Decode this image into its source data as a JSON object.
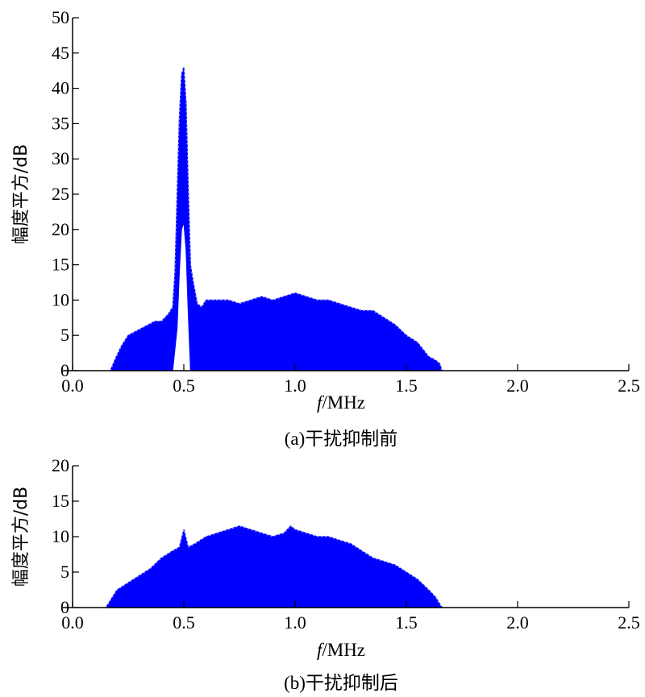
{
  "chart_data": [
    {
      "type": "area",
      "caption": "(a)干扰抑制前",
      "xlabel_italic": "f",
      "xlabel_rest": "/MHz",
      "ylabel": "幅度平方/dB",
      "xlim": [
        0,
        2.5
      ],
      "ylim": [
        0,
        50
      ],
      "xticks": [
        "0.0",
        "0.5",
        "1.0",
        "1.5",
        "2.0",
        "2.5"
      ],
      "yticks": [
        "0",
        "5",
        "10",
        "15",
        "20",
        "25",
        "30",
        "35",
        "40",
        "45",
        "50"
      ],
      "color": "#0000ff",
      "series": [
        {
          "x": [
            0.17,
            0.19,
            0.22,
            0.25,
            0.28,
            0.31,
            0.34,
            0.37,
            0.4,
            0.43,
            0.45,
            0.46,
            0.47,
            0.48,
            0.49,
            0.5,
            0.51,
            0.52,
            0.53,
            0.54,
            0.56,
            0.58,
            0.6,
            0.65,
            0.7,
            0.75,
            0.8,
            0.85,
            0.9,
            0.95,
            1.0,
            1.05,
            1.1,
            1.15,
            1.2,
            1.25,
            1.3,
            1.35,
            1.4,
            1.45,
            1.5,
            1.55,
            1.6,
            1.63,
            1.65,
            1.66
          ],
          "y": [
            0.0,
            1.5,
            3.5,
            5.0,
            5.5,
            6.0,
            6.5,
            7.0,
            7.0,
            8.0,
            9.0,
            14.0,
            25.0,
            36.0,
            42.0,
            43.0,
            38.0,
            26.0,
            15.0,
            13.0,
            9.5,
            9.0,
            10.0,
            10.0,
            10.0,
            9.5,
            10.0,
            10.5,
            10.0,
            10.5,
            11.0,
            10.5,
            10.0,
            10.0,
            9.5,
            9.0,
            8.5,
            8.5,
            7.5,
            6.5,
            5.0,
            4.0,
            2.0,
            1.5,
            1.0,
            0.0
          ]
        }
      ],
      "inner_curve": {
        "x": [
          0.45,
          0.47,
          0.48,
          0.49,
          0.5,
          0.51,
          0.52,
          0.53
        ],
        "y": [
          0.0,
          6.0,
          14.0,
          20.0,
          21.0,
          17.0,
          8.0,
          0.0
        ]
      }
    },
    {
      "type": "area",
      "caption": "(b)干扰抑制后",
      "xlabel_italic": "f",
      "xlabel_rest": "/MHz",
      "ylabel": "幅度平方/dB",
      "xlim": [
        0,
        2.5
      ],
      "ylim": [
        0,
        20
      ],
      "xticks": [
        "0.0",
        "0.5",
        "1.0",
        "1.5",
        "2.0",
        "2.5"
      ],
      "yticks": [
        "0",
        "5",
        "10",
        "15",
        "20"
      ],
      "color": "#0000ff",
      "series": [
        {
          "x": [
            0.15,
            0.17,
            0.2,
            0.25,
            0.3,
            0.35,
            0.4,
            0.45,
            0.48,
            0.5,
            0.52,
            0.55,
            0.6,
            0.65,
            0.7,
            0.75,
            0.8,
            0.85,
            0.9,
            0.95,
            0.98,
            1.0,
            1.05,
            1.1,
            1.15,
            1.2,
            1.25,
            1.3,
            1.35,
            1.4,
            1.45,
            1.5,
            1.55,
            1.6,
            1.63,
            1.65,
            1.66
          ],
          "y": [
            0.0,
            1.0,
            2.5,
            3.5,
            4.5,
            5.5,
            7.0,
            8.0,
            8.5,
            11.0,
            8.5,
            9.0,
            10.0,
            10.5,
            11.0,
            11.5,
            11.0,
            10.5,
            10.0,
            10.5,
            11.5,
            11.0,
            10.5,
            10.0,
            10.0,
            9.5,
            9.0,
            8.0,
            7.0,
            6.5,
            6.0,
            5.0,
            4.0,
            2.5,
            1.5,
            0.5,
            0.0
          ]
        }
      ]
    }
  ]
}
